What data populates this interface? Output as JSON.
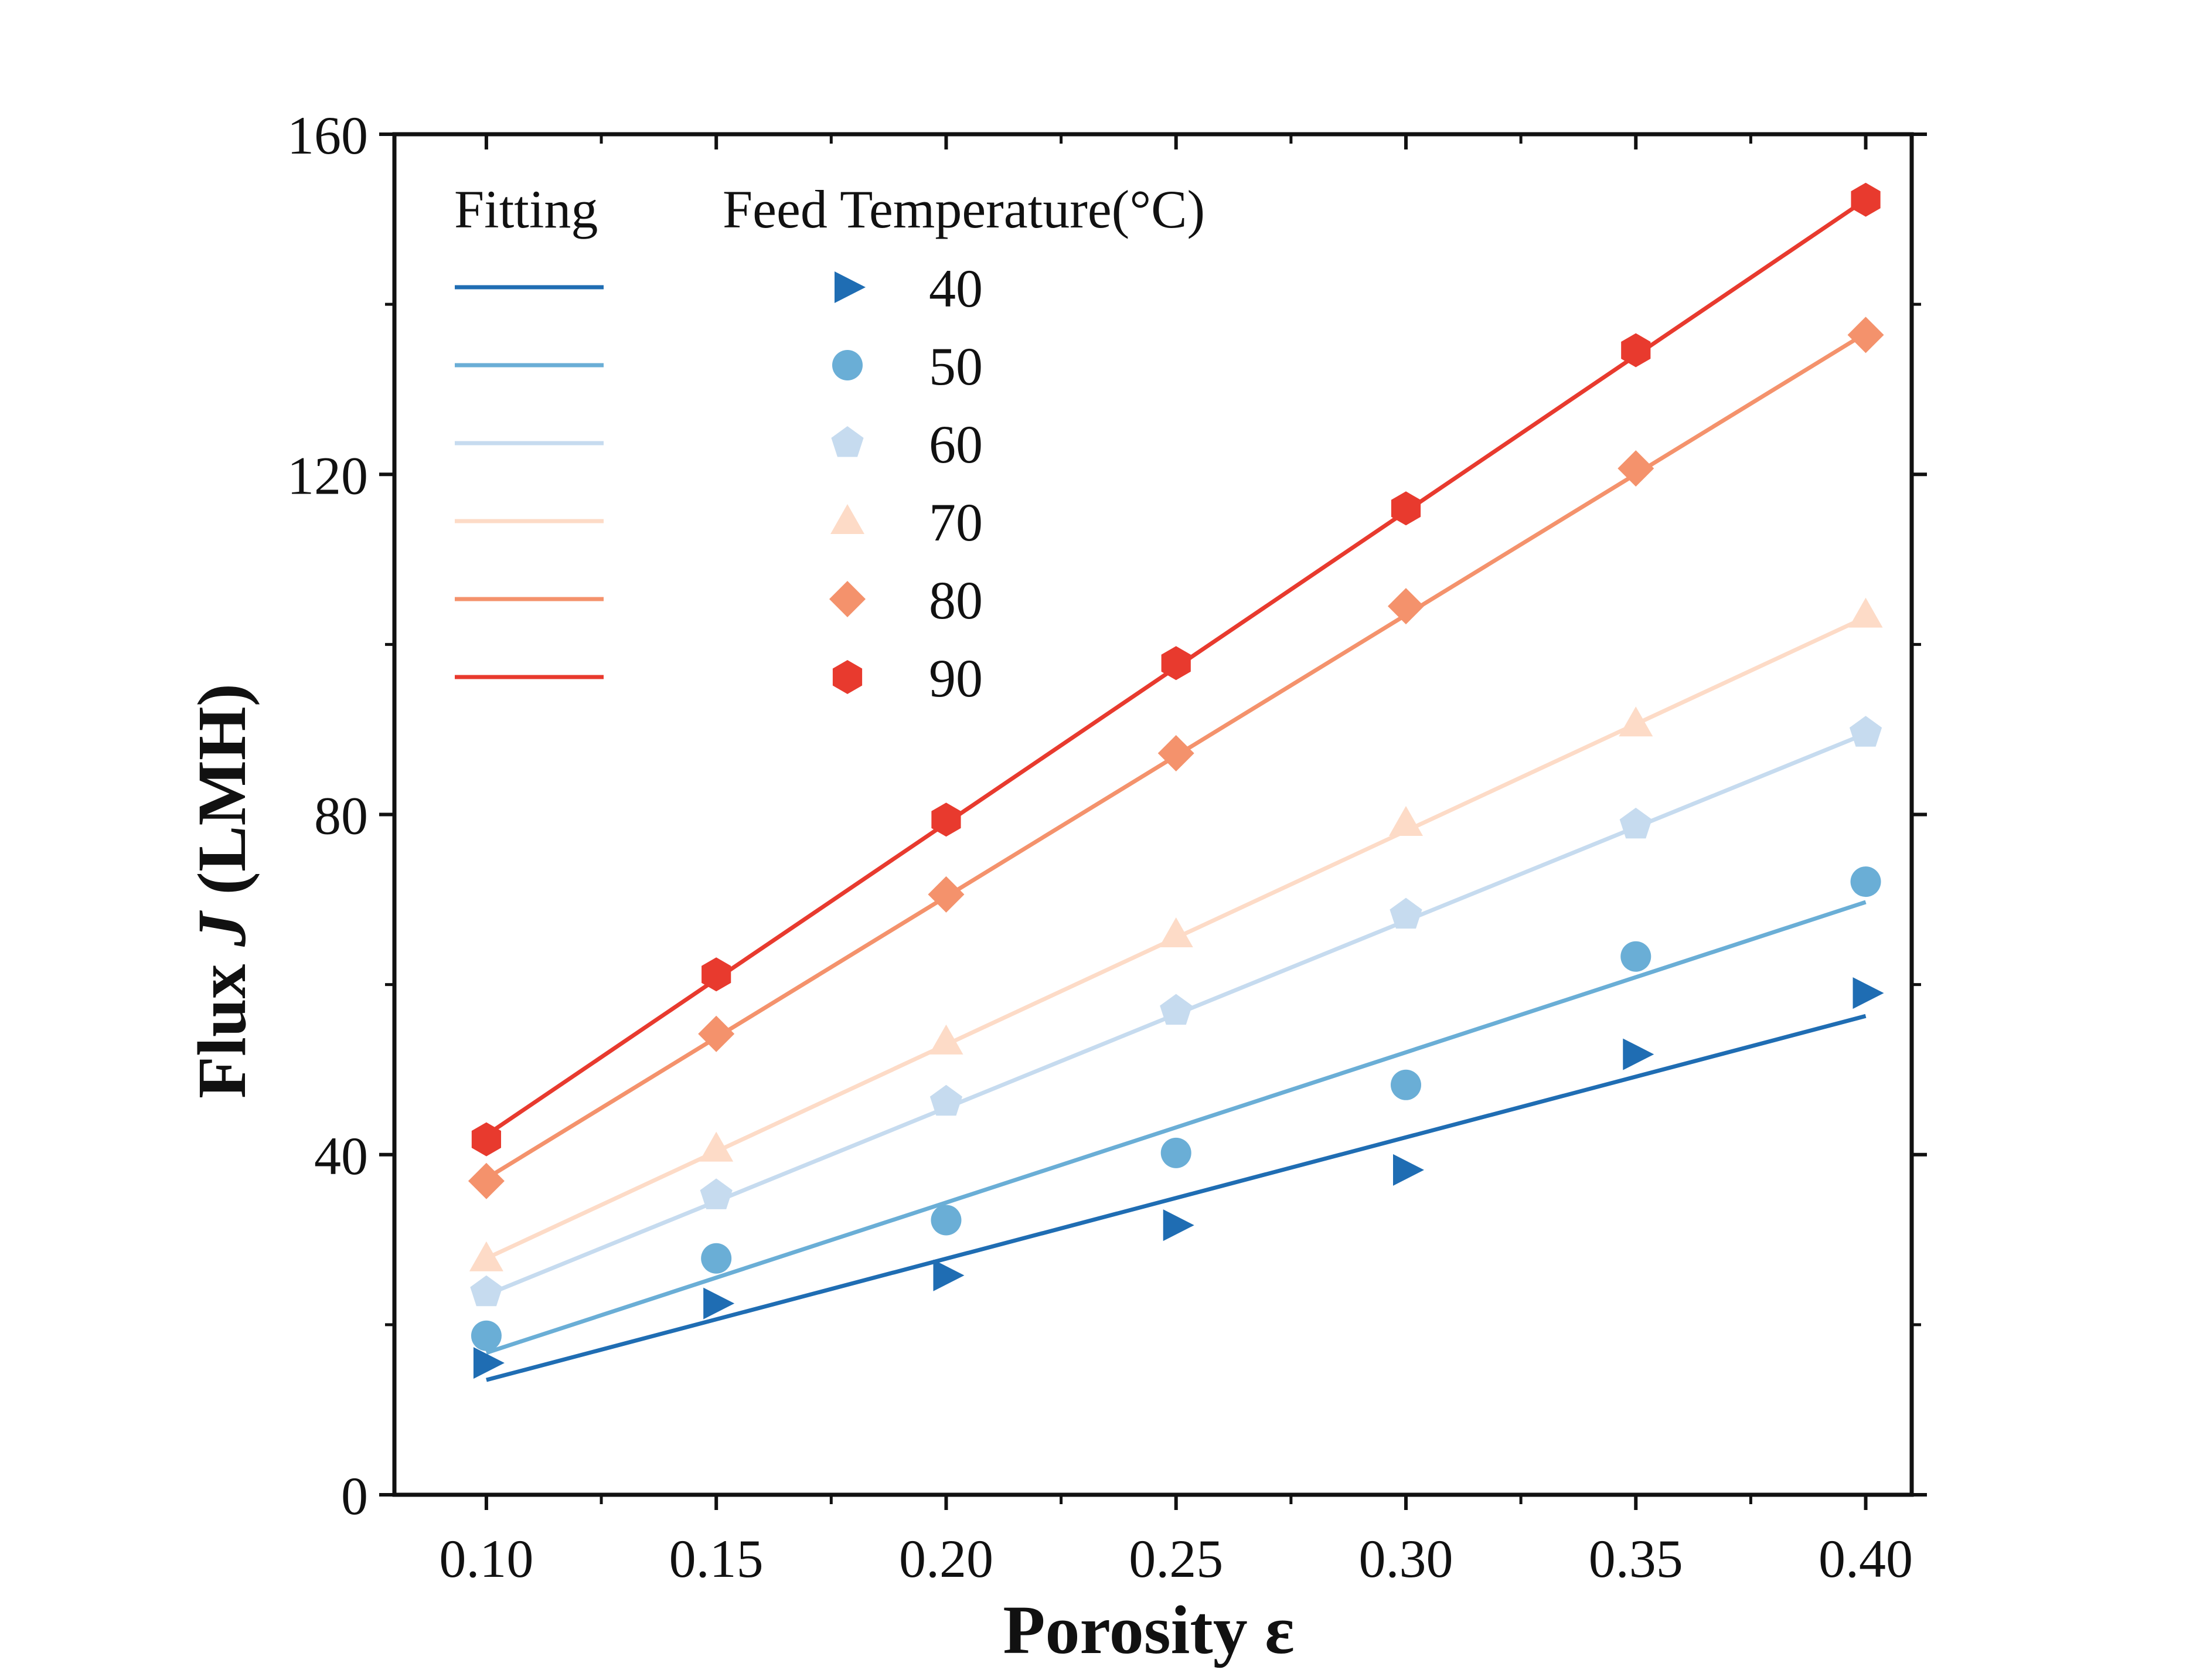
{
  "chart_data": {
    "type": "scatter",
    "title": "",
    "xlabel": "Porosity ε",
    "ylabel_prefix": "Flux ",
    "ylabel_italic": "J",
    "ylabel_suffix": " (LMH)",
    "xlim": [
      0.08,
      0.41
    ],
    "ylim": [
      0,
      160
    ],
    "x": [
      0.1,
      0.15,
      0.2,
      0.25,
      0.3,
      0.35,
      0.4
    ],
    "xtick_labels": [
      "0.10",
      "0.15",
      "0.20",
      "0.25",
      "0.30",
      "0.35",
      "0.40"
    ],
    "yticks": [
      0,
      40,
      80,
      120,
      160
    ],
    "ytick_labels": [
      "0",
      "40",
      "80",
      "120",
      "160"
    ],
    "legend": {
      "fitting_title": "Fitting",
      "marker_title": "Feed Temperature(°C)",
      "position": "top-left"
    },
    "series": [
      {
        "name": "40",
        "color": "#1f6db3",
        "marker": "triangle-right",
        "values": [
          15.5,
          22.5,
          25.8,
          31.7,
          38.2,
          51.8,
          59.0
        ],
        "fit": [
          13.5,
          56.3
        ]
      },
      {
        "name": "50",
        "color": "#6aaed6",
        "marker": "circle",
        "values": [
          18.7,
          27.8,
          32.3,
          40.2,
          48.2,
          63.3,
          72.1
        ],
        "fit": [
          16.7,
          69.7
        ]
      },
      {
        "name": "60",
        "color": "#c6dbef",
        "marker": "pentagon",
        "values": [
          23.8,
          35.2,
          46.2,
          56.9,
          68.2,
          78.8,
          89.6
        ],
        "fit": [
          23.5,
          89.5
        ]
      },
      {
        "name": "70",
        "color": "#fddbc7",
        "marker": "triangle-up",
        "values": [
          27.8,
          40.7,
          53.3,
          65.9,
          79.0,
          90.7,
          103.5
        ],
        "fit": [
          27.8,
          103.2
        ]
      },
      {
        "name": "80",
        "color": "#f4926c",
        "marker": "diamond",
        "values": [
          36.9,
          54.2,
          70.6,
          87.2,
          104.5,
          120.7,
          136.4
        ],
        "fit": [
          37.2,
          136.6
        ]
      },
      {
        "name": "90",
        "color": "#e83a2e",
        "marker": "hexagon",
        "values": [
          41.8,
          61.2,
          79.4,
          97.8,
          116.0,
          134.6,
          152.3
        ],
        "fit": [
          42.3,
          152.3
        ]
      }
    ]
  }
}
